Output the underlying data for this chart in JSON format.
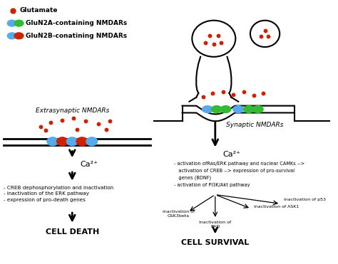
{
  "bg_color": "#ffffff",
  "glutamate_color": "#cc2200",
  "blue_color": "#55aaee",
  "green_color": "#33bb33",
  "red_color": "#cc2200",
  "extrasynaptic_label": "Extrasynaptic NMDARs",
  "synaptic_label": "Synaptic NMDARs",
  "ca2_left_label": "Ca²⁺",
  "ca2_right_label": "Ca²⁺",
  "left_effects": "- CREB dephosphorylation and inactivation\n- inactivation of the ERK pathway\n- expression of pro-death genes",
  "cell_death_label": "CELL DEATH",
  "right_effects_line1": "- activation ofRas/ERK pathway and nuclear CAMKs -->",
  "right_effects_line2": "   activation of CREB --> expression of pro-survival",
  "right_effects_line3": "   genes (BDNF)",
  "right_effects_line4": "- activation of PI3K/Akt pathway",
  "cell_survival_label": "CELL SURVIVAL",
  "inact_labels": [
    "inactivation of\nGSK3beta",
    "inactivation of\nBAD",
    "inactivation of ASK1",
    "inactivation of p53"
  ],
  "legend_dot_label": "Glutamate",
  "legend_gluN2A_label": "GluN2A-containing NMDARs",
  "legend_gluN2B_label": "GluN2B-conatining NMDARs"
}
